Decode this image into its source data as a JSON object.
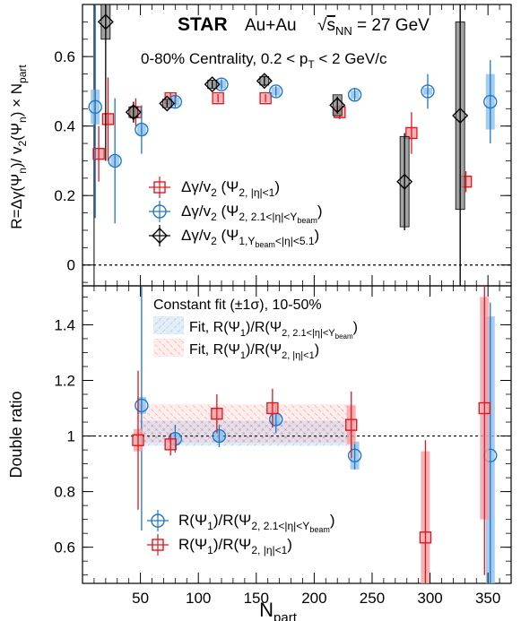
{
  "figure": {
    "experiment": "STAR",
    "system": "Au+Au",
    "energy": "√s_NN = 27 GeV",
    "centrality_text": "0-80% Centrality, 0.2 < p_T < 2 GeV/c",
    "xlabel": "N_part",
    "colors": {
      "red": "#e8141c",
      "blue": "#1e78c8",
      "black": "#000000",
      "gray": "#8c8c8c"
    }
  },
  "chart_data": [
    {
      "type": "scatter",
      "panel": "top",
      "ylabel": "R=Δγ(Ψ_n)/v_2(Ψ_n)×N_part",
      "xlim": [
        0,
        370
      ],
      "ylim": [
        -0.06,
        0.75
      ],
      "xticks": [
        50,
        100,
        150,
        200,
        250,
        300,
        350
      ],
      "yticks": [
        0,
        0.2,
        0.4,
        0.6
      ],
      "ytick_labels": [
        "0",
        "0.2",
        "0.4",
        "0.6"
      ],
      "reference_line": 0,
      "vertical_lines": [
        10,
        326
      ],
      "legend_position": "center-left",
      "series": [
        {
          "name": "Δγ/v_2 (Ψ_{2,|η|<1})",
          "marker": "square",
          "color": "#e8141c",
          "points": [
            {
              "x": 14,
              "y": 0.32,
              "err": 0.08,
              "sys": 0.015
            },
            {
              "x": 22,
              "y": 0.42,
              "err": 0.12,
              "sys": 0.015
            },
            {
              "x": 46,
              "y": 0.44,
              "err": 0.04,
              "sys": 0.012
            },
            {
              "x": 76,
              "y": 0.48,
              "err": 0.015,
              "sys": 0.012
            },
            {
              "x": 117,
              "y": 0.48,
              "err": 0.012,
              "sys": 0.012
            },
            {
              "x": 158,
              "y": 0.48,
              "err": 0.012,
              "sys": 0.012
            },
            {
              "x": 222,
              "y": 0.44,
              "err": 0.02,
              "sys": 0.015
            },
            {
              "x": 284,
              "y": 0.38,
              "err": 0.06,
              "sys": 0.015
            },
            {
              "x": 331,
              "y": 0.24,
              "err": 0.03,
              "sys": 0.015
            }
          ]
        },
        {
          "name": "Δγ/v_2 (Ψ_{2,2.1<|η|<Y_beam})",
          "marker": "circle",
          "color": "#1e78c8",
          "points": [
            {
              "x": 11,
              "y": 0.455,
              "err": 0.32,
              "sys": 0.05
            },
            {
              "x": 28,
              "y": 0.3,
              "err": 0.18,
              "sys": 0.015
            },
            {
              "x": 51,
              "y": 0.39,
              "err": 0.07,
              "sys": 0.015
            },
            {
              "x": 80,
              "y": 0.47,
              "err": 0.02,
              "sys": 0.012
            },
            {
              "x": 120,
              "y": 0.52,
              "err": 0.015,
              "sys": 0.012
            },
            {
              "x": 167,
              "y": 0.5,
              "err": 0.015,
              "sys": 0.012
            },
            {
              "x": 235,
              "y": 0.49,
              "err": 0.02,
              "sys": 0.012
            },
            {
              "x": 298,
              "y": 0.5,
              "err": 0.05,
              "sys": 0.01
            },
            {
              "x": 352,
              "y": 0.47,
              "err": 0.12,
              "sys": 0.08
            }
          ]
        },
        {
          "name": "Δγ/v_2 (Ψ_{1,Y_beam<|η|<5.1})",
          "marker": "diamond",
          "color": "#000000",
          "points": [
            {
              "x": 20,
              "y": 0.7,
              "err": 0.4,
              "sys": 0.05
            },
            {
              "x": 44,
              "y": 0.44,
              "err": 0.03,
              "sys": 0.015
            },
            {
              "x": 73,
              "y": 0.465,
              "err": 0.01,
              "sys": 0.012
            },
            {
              "x": 112,
              "y": 0.52,
              "err": 0.012,
              "sys": 0.012
            },
            {
              "x": 157,
              "y": 0.53,
              "err": 0.015,
              "sys": 0.012
            },
            {
              "x": 220,
              "y": 0.46,
              "err": 0.025,
              "sys": 0.03
            },
            {
              "x": 278,
              "y": 0.24,
              "err": 0.14,
              "sys": 0.13
            },
            {
              "x": 326,
              "y": 0.43,
              "err": 0.55,
              "sys": 0.27
            }
          ]
        }
      ]
    },
    {
      "type": "scatter",
      "panel": "bottom",
      "ylabel": "Double ratio",
      "xlim": [
        0,
        370
      ],
      "ylim": [
        0.47,
        1.54
      ],
      "xticks": [
        50,
        100,
        150,
        200,
        250,
        300,
        350
      ],
      "xtick_labels": [
        "50",
        "100",
        "150",
        "200",
        "250",
        "300",
        "350"
      ],
      "yticks": [
        0.6,
        0.8,
        1.0,
        1.2,
        1.4
      ],
      "ytick_labels": [
        "0.6",
        "0.8",
        "1",
        "1.2",
        "1.4"
      ],
      "reference_line": 1,
      "fit_title": "Constant fit (±1σ), 10-50%",
      "fits": [
        {
          "name": "Fit, R(Ψ_1)/R(Ψ_{2,2.1<|η|<Y_beam})",
          "color": "#1e78c8",
          "x_range": [
            50,
            235
          ],
          "value": 1.01,
          "sigma": 0.045
        },
        {
          "name": "Fit, R(Ψ_1)/R(Ψ_{2,|η|<1})",
          "color": "#e8141c",
          "x_range": [
            47,
            235
          ],
          "value": 1.045,
          "sigma": 0.07
        }
      ],
      "series": [
        {
          "name": "R(Ψ_1)/R(Ψ_{2,2.1<|η|<Y_beam})",
          "marker": "circle",
          "color": "#1e78c8",
          "points": [
            {
              "x": 51,
              "y": 1.11,
              "err": 0.45,
              "sys": 0.03
            },
            {
              "x": 80,
              "y": 0.99,
              "err": 0.05,
              "sys": 0.02
            },
            {
              "x": 118,
              "y": 1.0,
              "err": 0.04,
              "sys": 0.02
            },
            {
              "x": 167,
              "y": 1.06,
              "err": 0.05,
              "sys": 0.02
            },
            {
              "x": 235,
              "y": 0.93,
              "err": 0.05,
              "sys": 0.05
            },
            {
              "x": 352,
              "y": 0.93,
              "err": 0.55,
              "sys": 0.5
            }
          ]
        },
        {
          "name": "R(Ψ_1)/R(Ψ_{2,|η|<1})",
          "marker": "square",
          "color": "#e8141c",
          "points": [
            {
              "x": 48,
              "y": 0.985,
              "err": 0.25,
              "sys": 0.04
            },
            {
              "x": 76,
              "y": 0.97,
              "err": 0.04,
              "sys": 0.02
            },
            {
              "x": 116,
              "y": 1.08,
              "err": 0.07,
              "sys": 0.02
            },
            {
              "x": 164,
              "y": 1.1,
              "err": 0.07,
              "sys": 0.02
            },
            {
              "x": 232,
              "y": 1.04,
              "err": 0.12,
              "sys": 0.07
            },
            {
              "x": 296,
              "y": 0.635,
              "err": 0.35,
              "sys": 0.31
            },
            {
              "x": 347,
              "y": 1.1,
              "err": 0.6,
              "sys": 0.4
            }
          ]
        }
      ]
    }
  ]
}
